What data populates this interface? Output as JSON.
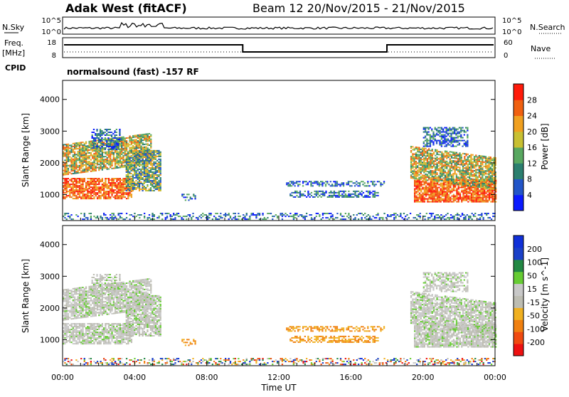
{
  "header": {
    "site_title": "Adak West (fitACF)",
    "beam_dates": "Beam 12  20/Nov/2015 - 21/Nov/2015"
  },
  "status_panels": {
    "noise": {
      "left_label": "N.Sky",
      "left_ticks": [
        "10^5",
        "10^0"
      ],
      "right_ticks": [
        "10^5",
        "10^0"
      ],
      "right_label": "N.Search"
    },
    "freq": {
      "left_label_line1": "Freq.",
      "left_label_line2": "[MHz]",
      "left_ticks": [
        "18",
        "8"
      ],
      "right_ticks": [
        "60",
        "0"
      ],
      "right_label": "Nave"
    },
    "cpid": {
      "label": "CPID",
      "value": "normalsound (fast) -157 RF"
    }
  },
  "colors": {
    "power_scale": [
      "#0a1aff",
      "#2255c8",
      "#2b7f6f",
      "#58a860",
      "#c8c032",
      "#f0a020",
      "#f06010",
      "#ff1a0a"
    ],
    "velocity_scale": [
      "#ee1111",
      "#f04a10",
      "#f08010",
      "#f0b020",
      "#bdbdb2",
      "#c8c8c8",
      "#66cc33",
      "#228844",
      "#1a40c8",
      "#1030d8"
    ]
  },
  "chart_data": [
    {
      "type": "heatmap",
      "name": "power",
      "ylabel": "Slant Range [km]",
      "xlabel": "",
      "x_ticks": [
        "00:00",
        "04:00",
        "08:00",
        "12:00",
        "16:00",
        "20:00",
        "00:00"
      ],
      "x_range_hours": [
        0,
        24
      ],
      "y_ticks": [
        1000,
        2000,
        3000,
        4000
      ],
      "ylim": [
        180,
        4600
      ],
      "colorbar": {
        "label": "Power [dB]",
        "ticks": [
          4,
          8,
          12,
          16,
          20,
          24,
          28
        ],
        "range": [
          0,
          32
        ]
      }
    },
    {
      "type": "heatmap",
      "name": "velocity",
      "ylabel": "Slant Range [km]",
      "xlabel": "Time UT",
      "x_ticks": [
        "00:00",
        "04:00",
        "08:00",
        "12:00",
        "16:00",
        "20:00",
        "00:00"
      ],
      "x_range_hours": [
        0,
        24
      ],
      "y_ticks": [
        1000,
        2000,
        3000,
        4000
      ],
      "ylim": [
        180,
        4600
      ],
      "colorbar": {
        "label": "Velocity [m s^-1]",
        "ticks": [
          200,
          100,
          50,
          15,
          -15,
          -50,
          -100,
          -200
        ]
      }
    }
  ],
  "scatter_regions": [
    {
      "name": "morning-main-echo",
      "t0": 0.0,
      "t1": 3.8,
      "r0": 850,
      "r1": 1500,
      "slope": 0,
      "power": "high",
      "vel": "gray"
    },
    {
      "name": "morning-upper-echo",
      "t0": 0.0,
      "t1": 4.9,
      "r0": 1600,
      "r1": 2550,
      "slope": 120,
      "power": "mixed",
      "vel": "gray"
    },
    {
      "name": "morning-top-echo",
      "t0": 1.6,
      "t1": 3.2,
      "r0": 2400,
      "r1": 3050,
      "slope": 0,
      "power": "low",
      "vel": "gray"
    },
    {
      "name": "dawn-echo",
      "t0": 3.5,
      "t1": 5.4,
      "r0": 1100,
      "r1": 2400,
      "slope": 0,
      "power": "mid",
      "vel": "gray"
    },
    {
      "name": "mid-morning-echo",
      "t0": 6.6,
      "t1": 7.4,
      "r0": 800,
      "r1": 1000,
      "slope": 0,
      "power": "low",
      "vel": "orange"
    },
    {
      "name": "afternoon-band-upper",
      "t0": 12.4,
      "t1": 17.8,
      "r0": 1250,
      "r1": 1420,
      "slope": 0,
      "power": "low",
      "vel": "orange"
    },
    {
      "name": "afternoon-band-lower",
      "t0": 12.6,
      "t1": 17.5,
      "r0": 900,
      "r1": 1100,
      "slope": 0,
      "power": "low",
      "vel": "orange"
    },
    {
      "name": "evening-main-echo",
      "t0": 19.5,
      "t1": 24.0,
      "r0": 750,
      "r1": 1450,
      "slope": 0,
      "power": "high",
      "vel": "gray"
    },
    {
      "name": "evening-upper-echo",
      "t0": 19.3,
      "t1": 24.0,
      "r0": 1500,
      "r1": 2500,
      "slope": -120,
      "power": "mixed",
      "vel": "gray"
    },
    {
      "name": "evening-top-echo",
      "t0": 20.0,
      "t1": 22.5,
      "r0": 2500,
      "r1": 3100,
      "slope": 0,
      "power": "low",
      "vel": "gray"
    },
    {
      "name": "ground-scatter-floor",
      "t0": 0.0,
      "t1": 24.0,
      "r0": 200,
      "r1": 420,
      "slope": 0,
      "power": "sparse",
      "vel": "floor"
    }
  ]
}
